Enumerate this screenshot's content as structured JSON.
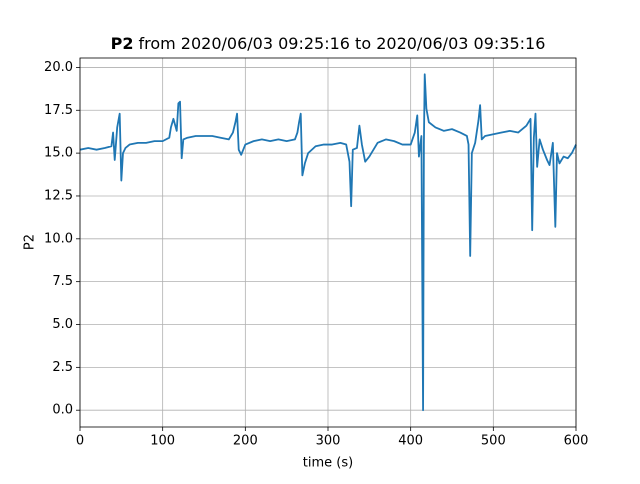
{
  "chart_data": {
    "type": "line",
    "title": {
      "bold": "P2",
      "rest": "from 2020/06/03 09:25:16 to 2020/06/03 09:35:16"
    },
    "x_label": "time (s)",
    "y_label": "P2",
    "xlim": [
      0,
      600
    ],
    "ylim": [
      -0.98,
      20.55
    ],
    "xticks": [
      0,
      100,
      200,
      300,
      400,
      500,
      600
    ],
    "yticks": [
      {
        "value": 0,
        "label": "0.0"
      },
      2.5,
      {
        "value": 5,
        "label": "5.0"
      },
      7.5,
      {
        "value": 10,
        "label": "10.0"
      },
      12.5,
      {
        "value": 15,
        "label": "15.0"
      },
      17.5,
      {
        "value": 20,
        "label": "20.0"
      }
    ],
    "grid": true,
    "series": [
      {
        "name": "P2",
        "color": "#1f77b4",
        "x": [
          0,
          10,
          20,
          30,
          38,
          40,
          42,
          45,
          48,
          50,
          52,
          55,
          60,
          70,
          80,
          90,
          100,
          108,
          110,
          113,
          117,
          119,
          121,
          123,
          125,
          130,
          140,
          150,
          160,
          170,
          180,
          185,
          188,
          190,
          192,
          195,
          200,
          210,
          220,
          230,
          240,
          250,
          260,
          263,
          265,
          267,
          269,
          272,
          276,
          285,
          295,
          305,
          315,
          322,
          326,
          328,
          330,
          335,
          338,
          341,
          345,
          350,
          360,
          370,
          380,
          390,
          400,
          405,
          408,
          410,
          413,
          415,
          416,
          417,
          419,
          422,
          430,
          440,
          450,
          460,
          468,
          470,
          472,
          474,
          478,
          482,
          484,
          486,
          490,
          500,
          510,
          520,
          530,
          540,
          545,
          547,
          549,
          551,
          553,
          556,
          560,
          565,
          568,
          572,
          575,
          577,
          580,
          585,
          590,
          595,
          600
        ],
        "values": [
          15.2,
          15.3,
          15.2,
          15.3,
          15.4,
          16.2,
          14.6,
          16.5,
          17.3,
          13.4,
          15.0,
          15.3,
          15.5,
          15.6,
          15.6,
          15.7,
          15.7,
          15.9,
          16.5,
          17.0,
          16.3,
          17.9,
          18.0,
          14.7,
          15.8,
          15.9,
          16.0,
          16.0,
          16.0,
          15.9,
          15.8,
          16.2,
          16.8,
          17.3,
          15.2,
          14.9,
          15.5,
          15.7,
          15.8,
          15.7,
          15.8,
          15.7,
          15.8,
          16.2,
          16.8,
          17.3,
          13.7,
          14.4,
          15.0,
          15.4,
          15.5,
          15.5,
          15.6,
          15.5,
          14.5,
          11.9,
          15.2,
          15.3,
          16.6,
          15.5,
          14.5,
          14.8,
          15.6,
          15.8,
          15.7,
          15.5,
          15.5,
          16.2,
          17.2,
          14.8,
          16.0,
          0,
          15.5,
          19.6,
          17.6,
          16.8,
          16.5,
          16.3,
          16.4,
          16.2,
          16.0,
          15.5,
          9.0,
          15.0,
          15.6,
          16.9,
          17.8,
          15.8,
          16.0,
          16.1,
          16.2,
          16.3,
          16.2,
          16.6,
          17.0,
          10.5,
          15.9,
          17.3,
          14.2,
          15.8,
          15.2,
          14.6,
          14.3,
          15.6,
          10.7,
          15.0,
          14.4,
          14.8,
          14.7,
          15.0,
          15.5
        ]
      }
    ]
  }
}
